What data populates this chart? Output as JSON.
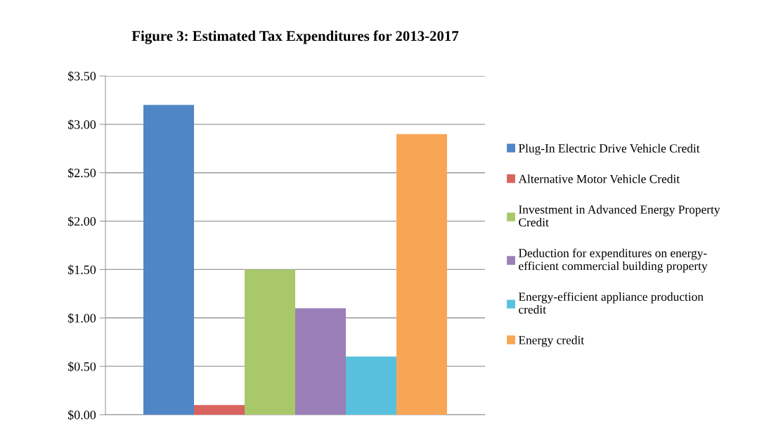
{
  "chart_data": {
    "type": "bar",
    "title": "Figure 3: Estimated Tax Expenditures for 2013-2017",
    "categories": [
      null
    ],
    "series": [
      {
        "name": "Plug-In Electric Drive Vehicle Credit",
        "color": "#4f86c6",
        "values": [
          3.2
        ]
      },
      {
        "name": "Alternative Motor Vehicle Credit",
        "color": "#d9635e",
        "values": [
          0.1
        ]
      },
      {
        "name": "Investment in Advanced Energy Property Credit",
        "color": "#a9c86a",
        "values": [
          1.5
        ]
      },
      {
        "name": "Deduction for expenditures on energy-efficient commercial building property",
        "color": "#9a7fb8",
        "values": [
          1.1
        ]
      },
      {
        "name": "Energy-efficient appliance production credit",
        "color": "#58c0dc",
        "values": [
          0.6
        ]
      },
      {
        "name": "Energy credit",
        "color": "#f9a556",
        "values": [
          2.9
        ]
      }
    ],
    "ylim": [
      0,
      3.5
    ],
    "yticks": [
      {
        "value": 0,
        "label": "$0.00"
      },
      {
        "value": 0.5,
        "label": "$0.50"
      },
      {
        "value": 1,
        "label": "$1.00"
      },
      {
        "value": 1.5,
        "label": "$1.50"
      },
      {
        "value": 2,
        "label": "$2.00"
      },
      {
        "value": 2.5,
        "label": "$2.50"
      },
      {
        "value": 3,
        "label": "$3.00"
      },
      {
        "value": 3.5,
        "label": "$3.50"
      }
    ],
    "grid": "y",
    "legend": "right"
  }
}
